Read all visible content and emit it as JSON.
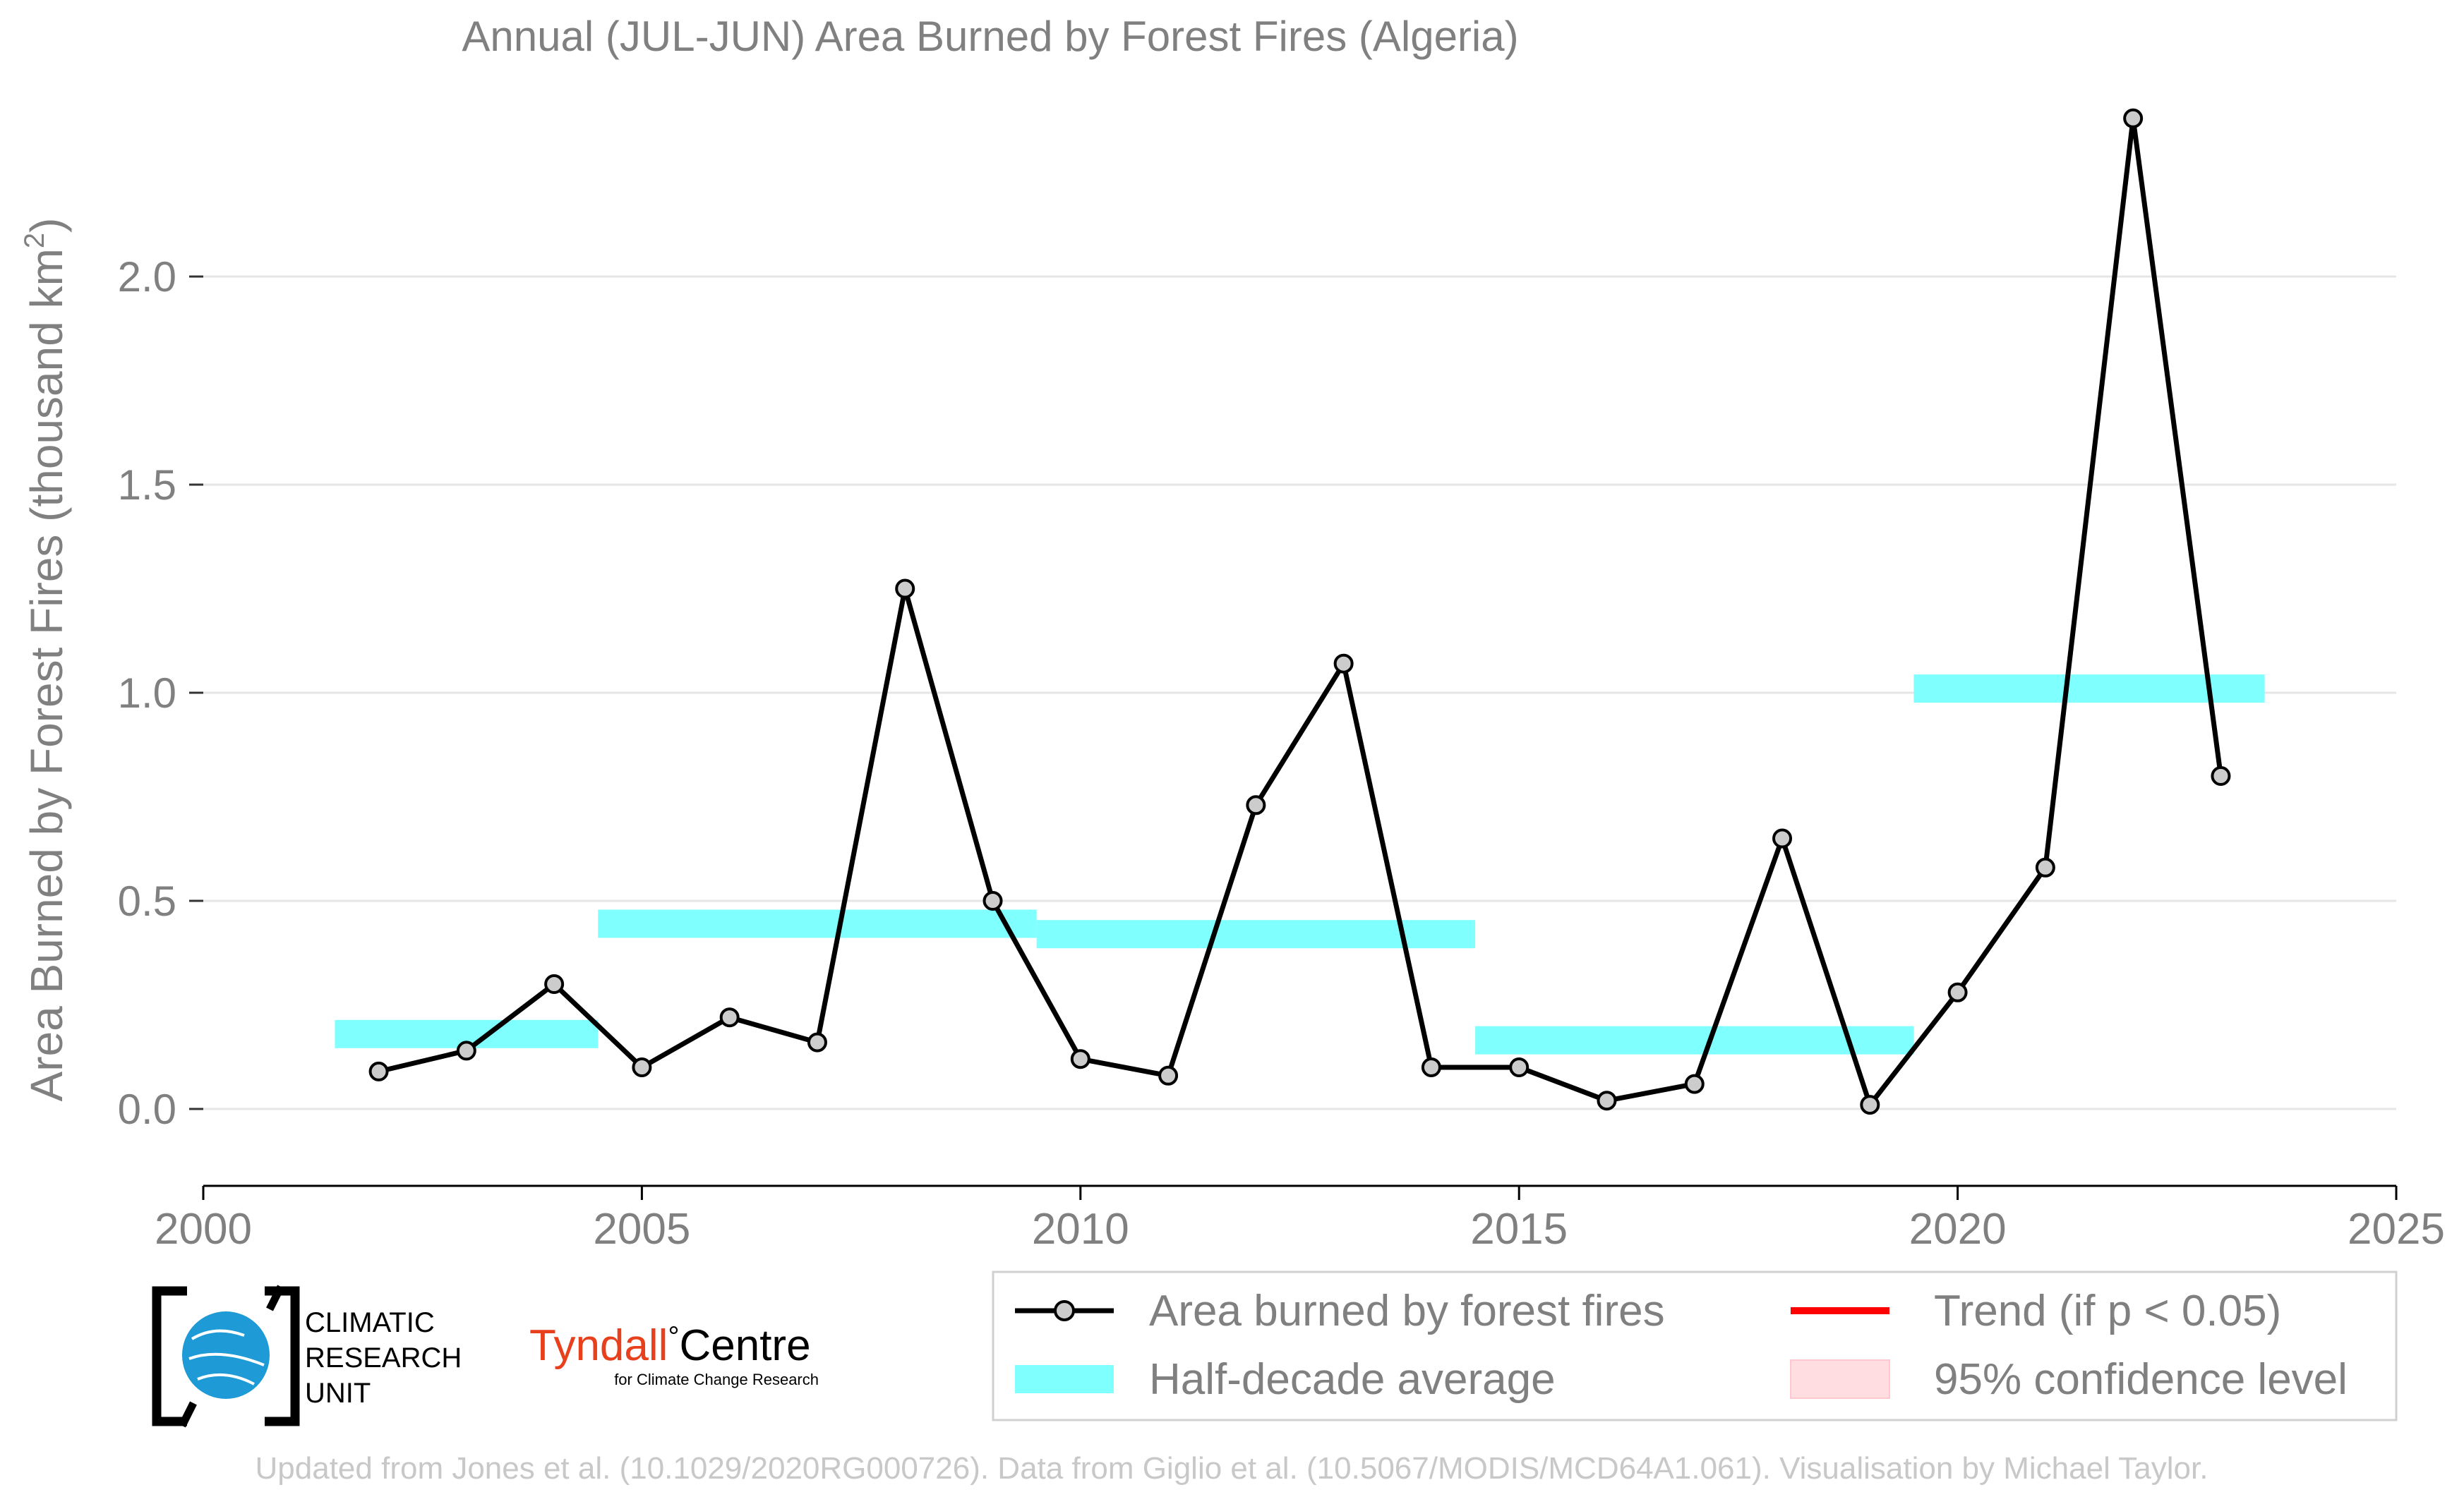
{
  "chart_data": {
    "type": "line",
    "title": "Annual (JUL-JUN) Area Burned by Forest Fires (Algeria)",
    "ylabel": "Area Burned by Forest Fires (thousand km",
    "ylabel_sup": "2",
    "ylabel_close": ")",
    "xlabel": "",
    "xlim": [
      2000,
      2025
    ],
    "ylim": [
      -0.1,
      2.4
    ],
    "xticks": [
      2000,
      2005,
      2010,
      2015,
      2020,
      2025
    ],
    "yticks": [
      0.0,
      0.5,
      1.0,
      1.5,
      2.0
    ],
    "ytick_labels": [
      "0.0",
      "0.5",
      "1.0",
      "1.5",
      "2.0"
    ],
    "grid": "horizontal",
    "series": [
      {
        "name": "Area burned by forest fires",
        "kind": "line-with-markers",
        "color": "#000000",
        "marker_fill": "#cccccc",
        "x": [
          2002,
          2003,
          2004,
          2005,
          2006,
          2007,
          2008,
          2009,
          2010,
          2011,
          2012,
          2013,
          2014,
          2015,
          2016,
          2017,
          2018,
          2019,
          2020,
          2021,
          2022,
          2023
        ],
        "values": [
          0.09,
          0.14,
          0.3,
          0.1,
          0.22,
          0.16,
          1.25,
          0.5,
          0.12,
          0.08,
          0.73,
          1.07,
          0.1,
          0.1,
          0.02,
          0.06,
          0.65,
          0.01,
          0.28,
          0.58,
          2.38,
          0.8
        ]
      },
      {
        "name": "Half-decade average",
        "kind": "band-segments",
        "color": "#80ffff",
        "segments": [
          {
            "x0": 2001.5,
            "x1": 2004.5,
            "value": 0.18
          },
          {
            "x0": 2004.5,
            "x1": 2009.5,
            "value": 0.445
          },
          {
            "x0": 2009.5,
            "x1": 2014.5,
            "value": 0.42
          },
          {
            "x0": 2014.5,
            "x1": 2019.5,
            "value": 0.165
          },
          {
            "x0": 2019.5,
            "x1": 2023.5,
            "value": 1.01
          }
        ]
      }
    ],
    "legend": {
      "placement": "bottom-right",
      "items": [
        {
          "label": "Area burned by forest fires",
          "kind": "line-marker",
          "color": "#000000"
        },
        {
          "label": "Trend (if p < 0.05)",
          "kind": "line",
          "color": "#ff0000"
        },
        {
          "label": "Half-decade average",
          "kind": "band",
          "color": "#80ffff"
        },
        {
          "label": "95% confidence level",
          "kind": "patch",
          "color": "#ffdde0"
        }
      ]
    }
  },
  "logos": {
    "cru_lines": [
      "CLIMATIC",
      "RESEARCH",
      "UNIT"
    ],
    "tyndall_main": "Tyndall",
    "tyndall_degree": "°",
    "tyndall_centre": "Centre",
    "tyndall_sub": "for Climate Change Research"
  },
  "footer": {
    "credit": "Updated from Jones et al. (10.1029/2020RG000726). Data from Giglio et al. (10.5067/MODIS/MCD64A1.061). Visualisation by Michael Taylor."
  },
  "colors": {
    "text_grey": "#808080",
    "grid": "#e6e6e6",
    "footer_grey": "#c8c8c8",
    "tyndall_red": "#e8401c",
    "cru_blue": "#1e9ad6"
  }
}
